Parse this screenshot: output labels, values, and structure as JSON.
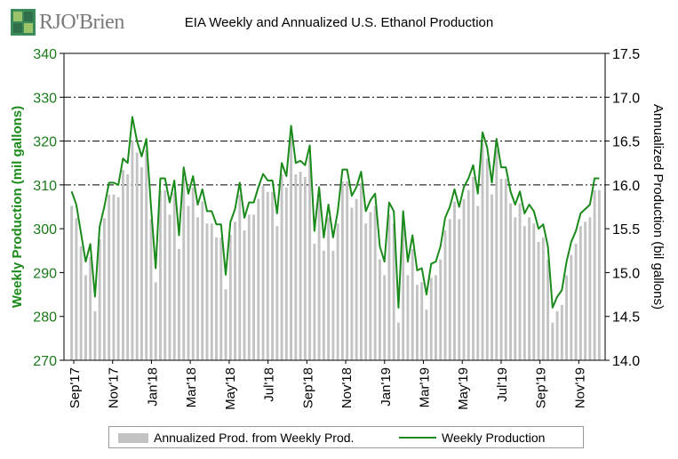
{
  "logo": {
    "text": "RJO'Brien",
    "icon": "rjo-brien-logo-icon"
  },
  "chart_data": {
    "type": "bar+line",
    "title": "EIA Weekly and Annualized U.S. Ethanol Production",
    "ylabel_left": "Weekly Production (mil gallons)",
    "ylabel_right": "Annualized Production (bil gallons)",
    "ylim_left": [
      270,
      340
    ],
    "ylim_right": [
      14.0,
      17.5
    ],
    "yticks_left": [
      "270",
      "280",
      "290",
      "300",
      "310",
      "320",
      "330",
      "340"
    ],
    "yticks_right": [
      "14.0",
      "14.5",
      "15.0",
      "15.5",
      "16.0",
      "16.5",
      "17.0",
      "17.5"
    ],
    "x_tick_labels": [
      "Sep'17",
      "Nov'17",
      "Jan'18",
      "Mar'18",
      "May'18",
      "Jul'18",
      "Sep'18",
      "Nov'18",
      "Jan'19",
      "Mar'19",
      "May'19",
      "Jul'19",
      "Sep'19",
      "Nov'19"
    ],
    "grid": "horizontal dash-dot at 310, 320, 330",
    "legend_position": "bottom",
    "series": [
      {
        "name": "Annualized Prod. from Weekly Prod.",
        "kind": "bar",
        "axis": "right",
        "color": "#c3c3c3"
      },
      {
        "name": "Weekly Production",
        "kind": "line",
        "axis": "left",
        "color": "#1a8a1a"
      }
    ],
    "weekly_production": [
      308.5,
      305.5,
      299,
      292.5,
      296.5,
      284.5,
      300.5,
      305,
      310.5,
      310.5,
      310,
      316,
      315,
      325.5,
      320,
      316.5,
      320.5,
      305,
      291,
      311.5,
      311.5,
      306,
      311,
      298.5,
      314,
      308,
      312,
      305.5,
      309,
      304,
      304,
      301,
      301,
      289.5,
      301.5,
      304.5,
      310.5,
      302.5,
      306,
      306,
      309.5,
      312.5,
      311,
      311,
      303.5,
      315,
      312,
      323.5,
      315,
      315.5,
      314.5,
      319,
      299.5,
      309.5,
      298,
      305.5,
      298,
      304,
      313.5,
      313.5,
      307.5,
      309.5,
      313,
      304,
      306.5,
      308,
      296,
      292.5,
      306,
      304,
      282,
      304,
      292.5,
      298.5,
      290.5,
      291,
      285,
      292,
      292.5,
      296,
      302.5,
      305,
      309,
      305,
      309.5,
      311.5,
      314.5,
      308,
      322,
      318.5,
      310.5,
      320.5,
      314,
      314,
      308.5,
      305.5,
      308.5,
      303.5,
      305.5,
      304,
      300,
      301,
      296,
      282,
      284.5,
      286,
      292.5,
      297,
      299.5,
      303.5,
      304.5,
      305.5,
      311.5,
      311.5
    ],
    "annualized_production": [
      15.76,
      15.62,
      15.3,
      14.97,
      15.18,
      14.56,
      15.38,
      15.62,
      15.89,
      15.89,
      15.86,
      16.17,
      16.12,
      16.5,
      16.37,
      16.2,
      16.4,
      15.61,
      14.89,
      15.94,
      15.94,
      15.66,
      15.91,
      15.27,
      16.07,
      15.76,
      15.97,
      15.63,
      15.81,
      15.56,
      15.56,
      15.4,
      15.4,
      14.81,
      15.43,
      15.58,
      15.89,
      15.48,
      15.66,
      15.66,
      15.84,
      15.99,
      15.92,
      15.92,
      15.53,
      16.12,
      15.97,
      16.55,
      16.12,
      16.15,
      16.09,
      16.32,
      15.33,
      15.84,
      15.25,
      15.63,
      15.25,
      15.56,
      16.04,
      16.04,
      15.74,
      15.84,
      16.02,
      15.56,
      15.69,
      15.76,
      15.15,
      14.97,
      15.66,
      15.56,
      14.43,
      15.56,
      14.97,
      15.27,
      14.86,
      14.89,
      14.58,
      14.94,
      14.97,
      15.15,
      15.48,
      15.61,
      15.81,
      15.61,
      15.84,
      15.94,
      16.09,
      15.76,
      16.48,
      16.3,
      15.89,
      16.4,
      16.07,
      16.07,
      15.79,
      15.63,
      15.79,
      15.53,
      15.63,
      15.56,
      15.35,
      15.4,
      15.15,
      14.43,
      14.56,
      14.63,
      14.97,
      15.2,
      15.33,
      15.53,
      15.58,
      15.63,
      15.94,
      15.94
    ]
  }
}
